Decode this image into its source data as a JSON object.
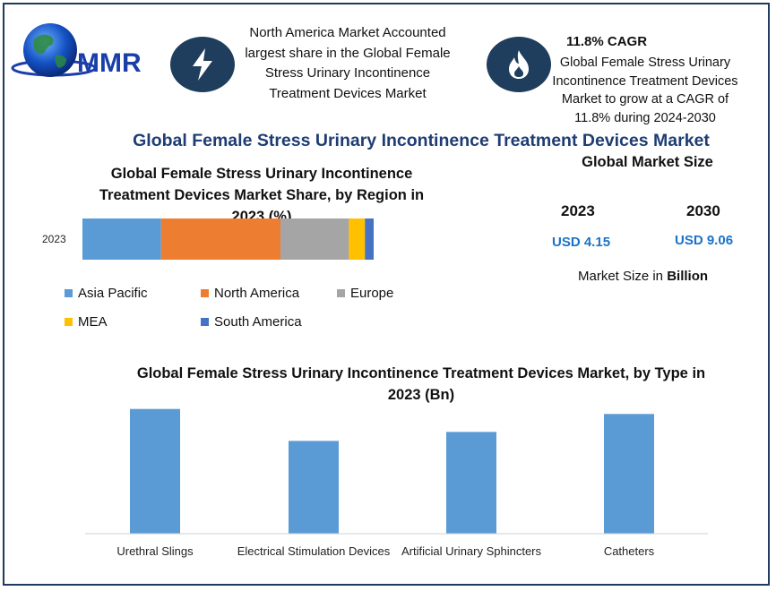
{
  "logo": {
    "text": "MMR"
  },
  "highlight_region": {
    "icon": "lightning-icon",
    "text": "North America Market Accounted largest share in the Global Female Stress Urinary Incontinence Treatment Devices Market"
  },
  "highlight_cagr": {
    "icon": "flame-icon",
    "title": "11.8% CAGR",
    "text": "Global Female Stress Urinary Incontinence Treatment Devices Market to grow at a CAGR of 11.8% during 2024-2030"
  },
  "main_title": "Global Female Stress Urinary Incontinence Treatment Devices Market",
  "market_size": {
    "title": "Global Market Size",
    "year_a": "2023",
    "value_a": "USD 4.15",
    "year_b": "2030",
    "value_b": "USD 9.06",
    "unit_prefix": "Market Size in ",
    "unit_bold": "Billion"
  },
  "chart_data": [
    {
      "type": "bar",
      "orientation": "horizontal-stacked",
      "title": "Global Female Stress Urinary Incontinence Treatment Devices Market Share, by Region in 2023 (%)",
      "categories": [
        "2023"
      ],
      "series": [
        {
          "name": "Asia Pacific",
          "color": "#5b9bd5",
          "values": [
            27
          ]
        },
        {
          "name": "North America",
          "color": "#ed7d31",
          "values": [
            41
          ]
        },
        {
          "name": "Europe",
          "color": "#a5a5a5",
          "values": [
            23.5
          ]
        },
        {
          "name": "MEA",
          "color": "#ffc000",
          "values": [
            5.5
          ]
        },
        {
          "name": "South America",
          "color": "#4472c4",
          "values": [
            3
          ]
        }
      ],
      "xlim": [
        0,
        100
      ],
      "legend": "bottom"
    },
    {
      "type": "bar",
      "title": "Global Female Stress Urinary Incontinence Treatment Devices Market, by Type in 2023 (Bn)",
      "categories": [
        "Urethral Slings",
        "Electrical Stimulation Devices",
        "Artificial Urinary Sphincters",
        "Catheters"
      ],
      "values": [
        1.25,
        0.93,
        1.02,
        1.2
      ],
      "color": "#5b9bd5",
      "ylim": [
        0,
        1.4
      ]
    }
  ]
}
